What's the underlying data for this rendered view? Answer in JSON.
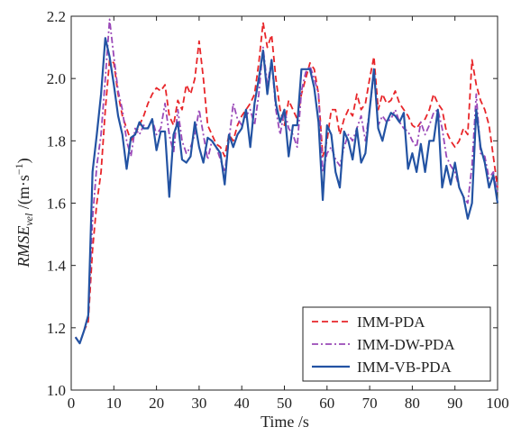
{
  "chart_data": {
    "type": "line",
    "xlabel": "Time /s",
    "ylabel": {
      "main": "RMSE",
      "sub": "vel",
      "unit_prefix": " /(m·s",
      "unit_sup": "−1",
      "unit_suffix": ")"
    },
    "xlim": [
      0,
      100
    ],
    "ylim": [
      1.0,
      2.2
    ],
    "xticks": [
      0,
      10,
      20,
      30,
      40,
      50,
      60,
      70,
      80,
      90,
      100
    ],
    "yticks": [
      1.0,
      1.2,
      1.4,
      1.6,
      1.8,
      2.0,
      2.2
    ],
    "ytick_labels": [
      "1.0",
      "1.2",
      "1.4",
      "1.6",
      "1.8",
      "2.0",
      "2.2"
    ],
    "legend_position": "bottom-right",
    "series": [
      {
        "name": "IMM-PDA",
        "color": "#e8262a",
        "style": "dashed",
        "x": [
          1,
          2,
          3,
          4,
          5,
          6,
          7,
          8,
          9,
          10,
          11,
          12,
          13,
          14,
          15,
          16,
          17,
          18,
          19,
          20,
          21,
          22,
          23,
          24,
          25,
          26,
          27,
          28,
          29,
          30,
          31,
          32,
          33,
          34,
          35,
          36,
          37,
          38,
          39,
          40,
          41,
          42,
          43,
          44,
          45,
          46,
          47,
          48,
          49,
          50,
          51,
          52,
          53,
          54,
          55,
          56,
          57,
          58,
          59,
          60,
          61,
          62,
          63,
          64,
          65,
          66,
          67,
          68,
          69,
          70,
          71,
          72,
          73,
          74,
          75,
          76,
          77,
          78,
          79,
          80,
          81,
          82,
          83,
          84,
          85,
          86,
          87,
          88,
          89,
          90,
          91,
          92,
          93,
          94,
          95,
          96,
          97,
          98,
          99,
          100
        ],
        "y": [
          1.17,
          1.15,
          1.19,
          1.22,
          1.45,
          1.6,
          1.7,
          1.9,
          2.06,
          2.05,
          1.95,
          1.88,
          1.84,
          1.8,
          1.82,
          1.85,
          1.88,
          1.92,
          1.95,
          1.97,
          1.96,
          1.98,
          1.88,
          1.85,
          1.93,
          1.9,
          1.98,
          1.95,
          2.0,
          2.12,
          2.0,
          1.85,
          1.82,
          1.79,
          1.78,
          1.75,
          1.82,
          1.8,
          1.85,
          1.88,
          1.9,
          1.92,
          1.95,
          2.05,
          2.18,
          2.1,
          2.14,
          2.0,
          1.9,
          1.85,
          1.93,
          1.9,
          1.87,
          1.95,
          2.0,
          2.05,
          2.03,
          1.95,
          1.75,
          1.8,
          1.9,
          1.9,
          1.82,
          1.87,
          1.9,
          1.88,
          1.95,
          1.9,
          1.92,
          2.0,
          2.07,
          1.9,
          1.95,
          1.92,
          1.93,
          1.96,
          1.92,
          1.9,
          1.88,
          1.85,
          1.84,
          1.86,
          1.87,
          1.9,
          1.95,
          1.92,
          1.9,
          1.83,
          1.8,
          1.78,
          1.8,
          1.84,
          1.82,
          2.06,
          1.98,
          1.93,
          1.9,
          1.85,
          1.75,
          1.65
        ]
      },
      {
        "name": "IMM-DW-PDA",
        "color": "#9a49b8",
        "style": "dashdot",
        "x": [
          1,
          2,
          3,
          4,
          5,
          6,
          7,
          8,
          9,
          10,
          11,
          12,
          13,
          14,
          15,
          16,
          17,
          18,
          19,
          20,
          21,
          22,
          23,
          24,
          25,
          26,
          27,
          28,
          29,
          30,
          31,
          32,
          33,
          34,
          35,
          36,
          37,
          38,
          39,
          40,
          41,
          42,
          43,
          44,
          45,
          46,
          47,
          48,
          49,
          50,
          51,
          52,
          53,
          54,
          55,
          56,
          57,
          58,
          59,
          60,
          61,
          62,
          63,
          64,
          65,
          66,
          67,
          68,
          69,
          70,
          71,
          72,
          73,
          74,
          75,
          76,
          77,
          78,
          79,
          80,
          81,
          82,
          83,
          84,
          85,
          86,
          87,
          88,
          89,
          90,
          91,
          92,
          93,
          94,
          95,
          96,
          97,
          98,
          99,
          100
        ],
        "y": [
          1.17,
          1.15,
          1.19,
          1.24,
          1.55,
          1.72,
          1.82,
          2.0,
          2.19,
          2.07,
          1.96,
          1.9,
          1.8,
          1.75,
          1.84,
          1.82,
          1.85,
          1.84,
          1.87,
          1.82,
          1.84,
          1.92,
          1.82,
          1.76,
          1.9,
          1.8,
          1.76,
          1.78,
          1.82,
          1.9,
          1.82,
          1.74,
          1.8,
          1.78,
          1.74,
          1.7,
          1.8,
          1.92,
          1.87,
          1.85,
          1.88,
          1.9,
          1.85,
          1.95,
          2.1,
          1.98,
          2.06,
          1.9,
          1.82,
          1.9,
          1.84,
          1.82,
          1.78,
          1.96,
          2.02,
          2.04,
          2.0,
          1.95,
          1.7,
          1.76,
          1.78,
          1.74,
          1.72,
          1.78,
          1.82,
          1.8,
          1.84,
          1.88,
          1.8,
          1.9,
          2.02,
          1.85,
          1.88,
          1.86,
          1.87,
          1.9,
          1.86,
          1.84,
          1.83,
          1.8,
          1.78,
          1.86,
          1.82,
          1.85,
          1.89,
          1.9,
          1.84,
          1.75,
          1.72,
          1.7,
          1.65,
          1.62,
          1.6,
          1.72,
          1.95,
          1.76,
          1.75,
          1.68,
          1.7,
          1.63
        ]
      },
      {
        "name": "IMM-VB-PDA",
        "color": "#2353a3",
        "style": "solid",
        "x": [
          1,
          2,
          3,
          4,
          5,
          6,
          7,
          8,
          9,
          10,
          11,
          12,
          13,
          14,
          15,
          16,
          17,
          18,
          19,
          20,
          21,
          22,
          23,
          24,
          25,
          26,
          27,
          28,
          29,
          30,
          31,
          32,
          33,
          34,
          35,
          36,
          37,
          38,
          39,
          40,
          41,
          42,
          43,
          44,
          45,
          46,
          47,
          48,
          49,
          50,
          51,
          52,
          53,
          54,
          55,
          56,
          57,
          58,
          59,
          60,
          61,
          62,
          63,
          64,
          65,
          66,
          67,
          68,
          69,
          70,
          71,
          72,
          73,
          74,
          75,
          76,
          77,
          78,
          79,
          80,
          81,
          82,
          83,
          84,
          85,
          86,
          87,
          88,
          89,
          90,
          91,
          92,
          93,
          94,
          95,
          96,
          97,
          98,
          99,
          100
        ],
        "y": [
          1.17,
          1.15,
          1.19,
          1.24,
          1.7,
          1.82,
          1.95,
          2.13,
          2.07,
          1.98,
          1.88,
          1.82,
          1.71,
          1.81,
          1.82,
          1.86,
          1.84,
          1.84,
          1.87,
          1.77,
          1.83,
          1.83,
          1.62,
          1.82,
          1.86,
          1.74,
          1.73,
          1.75,
          1.86,
          1.78,
          1.73,
          1.81,
          1.8,
          1.78,
          1.76,
          1.66,
          1.82,
          1.78,
          1.82,
          1.84,
          1.9,
          1.78,
          1.92,
          2.0,
          2.09,
          1.95,
          2.06,
          1.92,
          1.86,
          1.9,
          1.75,
          1.85,
          1.85,
          2.03,
          2.03,
          2.03,
          1.97,
          1.86,
          1.61,
          1.85,
          1.82,
          1.7,
          1.65,
          1.83,
          1.8,
          1.74,
          1.84,
          1.73,
          1.76,
          1.9,
          2.03,
          1.84,
          1.8,
          1.86,
          1.89,
          1.88,
          1.86,
          1.89,
          1.71,
          1.76,
          1.7,
          1.79,
          1.7,
          1.8,
          1.8,
          1.9,
          1.65,
          1.72,
          1.66,
          1.73,
          1.65,
          1.62,
          1.55,
          1.6,
          1.9,
          1.78,
          1.73,
          1.65,
          1.69,
          1.6
        ]
      }
    ]
  }
}
